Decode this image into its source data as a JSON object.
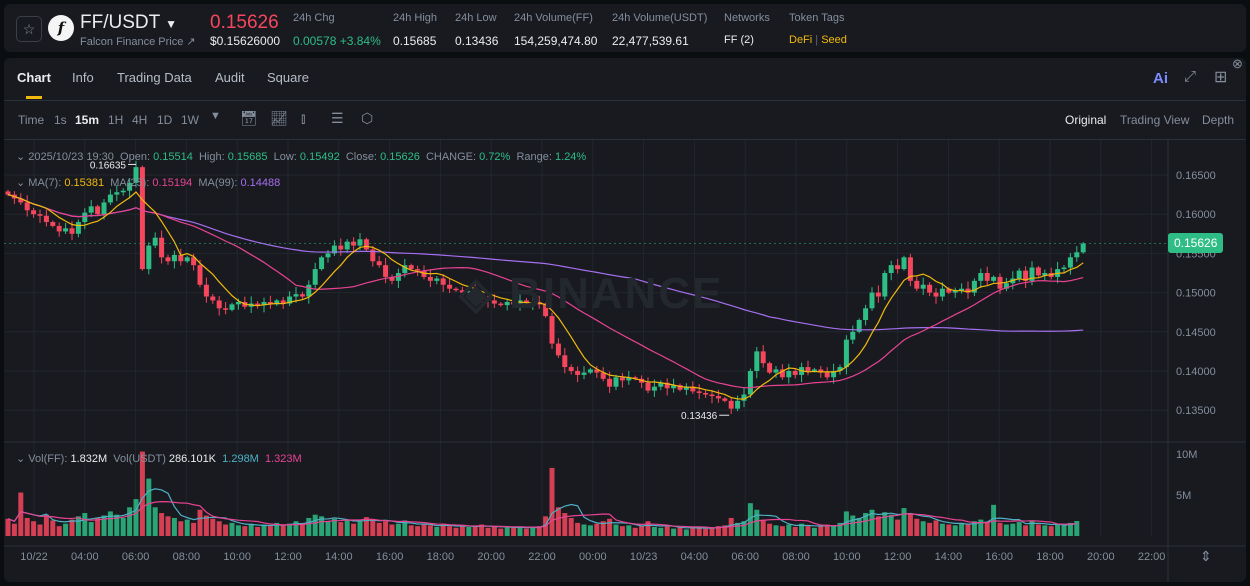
{
  "header": {
    "symbol": "FF/USDT",
    "subtitle": "Falcon Finance Price ↗",
    "price": "0.15626",
    "price_usd": "$0.15626000",
    "stats": [
      {
        "label": "24h Chg",
        "value": "0.00578 +3.84%"
      },
      {
        "label": "24h High",
        "value": "0.15685"
      },
      {
        "label": "24h Low",
        "value": "0.13436"
      },
      {
        "label": "24h Volume(FF)",
        "value": "154,259,474.80"
      },
      {
        "label": "24h Volume(USDT)",
        "value": "22,477,539.61"
      },
      {
        "label": "Networks",
        "value": "FF (2)"
      }
    ],
    "token_tags_label": "Token Tags",
    "tags": [
      "DeFi",
      "Seed"
    ],
    "tag_sep": "|"
  },
  "tabs": [
    "Chart",
    "Info",
    "Trading Data",
    "Audit",
    "Square"
  ],
  "toolbar": {
    "intervals": [
      "Time",
      "1s",
      "15m",
      "1H",
      "4H",
      "1D",
      "1W"
    ],
    "active": "15m",
    "views": [
      "Original",
      "Trading View",
      "Depth"
    ],
    "active_view": "Original",
    "ai": "Ai"
  },
  "legend": {
    "time": "2025/10/23 19:30",
    "open_l": "Open:",
    "open": "0.15514",
    "high_l": "High:",
    "high": "0.15685",
    "low_l": "Low:",
    "low": "0.15492",
    "close_l": "Close:",
    "close": "0.15626",
    "change_l": "CHANGE:",
    "change": "0.72%",
    "range_l": "Range:",
    "range": "1.24%",
    "ma7_l": "MA(7):",
    "ma7": "0.15381",
    "ma25_l": "MA(25):",
    "ma25": "0.15194",
    "ma99_l": "MA(99):",
    "ma99": "0.14488",
    "vol_l": "Vol(FF):",
    "vol": "1.832M",
    "volu_l": "Vol(USDT)",
    "volu": "286.101K",
    "vma1": "1.298M",
    "vma2": "1.323M"
  },
  "colors": {
    "up": "#2ebd85",
    "down": "#f6465d",
    "ma7": "#f0b90b",
    "ma25": "#e84393",
    "ma99": "#a66ff0",
    "vma1": "#4fb0c6",
    "vma2": "#e84393"
  },
  "chart_data": {
    "type": "candlestick",
    "interval": "15m",
    "price_ticks": [
      "0.16500",
      "0.16000",
      "0.15500",
      "0.15000",
      "0.14500",
      "0.14000",
      "0.13500"
    ],
    "ylim": [
      0.1305,
      0.1695
    ],
    "volume_ticks": [
      "10M",
      "5M"
    ],
    "x_ticks": [
      "10/22",
      "04:00",
      "06:00",
      "08:00",
      "10:00",
      "12:00",
      "14:00",
      "16:00",
      "18:00",
      "20:00",
      "22:00",
      "00:00",
      "10/23",
      "04:00",
      "06:00",
      "08:00",
      "10:00",
      "12:00",
      "14:00",
      "16:00",
      "18:00",
      "20:00",
      "22:00"
    ],
    "current_price": "0.15626",
    "max_label": "0.16635",
    "min_label": "0.13436",
    "watermark": "BINANCE",
    "closes": [
      0.1625,
      0.162,
      0.1615,
      0.1605,
      0.16,
      0.1598,
      0.159,
      0.1585,
      0.1578,
      0.1582,
      0.1575,
      0.159,
      0.1602,
      0.161,
      0.16,
      0.1615,
      0.1625,
      0.1628,
      0.163,
      0.164,
      0.166,
      0.153,
      0.156,
      0.157,
      0.1545,
      0.154,
      0.1548,
      0.154,
      0.1545,
      0.1535,
      0.151,
      0.1495,
      0.149,
      0.148,
      0.1478,
      0.1485,
      0.1488,
      0.1482,
      0.1486,
      0.1484,
      0.1488,
      0.1485,
      0.149,
      0.1486,
      0.1495,
      0.1498,
      0.1495,
      0.151,
      0.153,
      0.1545,
      0.155,
      0.156,
      0.1555,
      0.1565,
      0.156,
      0.1568,
      0.1555,
      0.154,
      0.1535,
      0.152,
      0.1515,
      0.1525,
      0.1535,
      0.153,
      0.1528,
      0.152,
      0.1515,
      0.1518,
      0.151,
      0.1505,
      0.1503,
      0.15,
      0.1502,
      0.1498,
      0.1492,
      0.149,
      0.1486,
      0.1484,
      0.1488,
      0.1485,
      0.149,
      0.1487,
      0.1488,
      0.1485,
      0.147,
      0.1435,
      0.142,
      0.1405,
      0.14,
      0.1395,
      0.1398,
      0.1402,
      0.1398,
      0.139,
      0.138,
      0.1392,
      0.1388,
      0.1392,
      0.139,
      0.1385,
      0.1375,
      0.138,
      0.1385,
      0.1378,
      0.1382,
      0.1376,
      0.138,
      0.1374,
      0.1372,
      0.137,
      0.1368,
      0.1365,
      0.1362,
      0.1352,
      0.1362,
      0.137,
      0.14,
      0.1425,
      0.141,
      0.1398,
      0.1402,
      0.1392,
      0.14,
      0.1395,
      0.1405,
      0.14,
      0.1402,
      0.1398,
      0.1392,
      0.14,
      0.1405,
      0.144,
      0.145,
      0.1465,
      0.148,
      0.15,
      0.1495,
      0.1525,
      0.1535,
      0.153,
      0.1545,
      0.1515,
      0.1505,
      0.151,
      0.15,
      0.1495,
      0.1505,
      0.15,
      0.1502,
      0.1505,
      0.15,
      0.1515,
      0.1525,
      0.1515,
      0.152,
      0.1505,
      0.1512,
      0.1518,
      0.1528,
      0.1515,
      0.1532,
      0.1522,
      0.1525,
      0.152,
      0.153,
      0.1532,
      0.1545,
      0.15514,
      0.15626
    ],
    "volumes_m": [
      2.1,
      1.5,
      5.3,
      2.2,
      1.8,
      1.4,
      2.6,
      1.9,
      1.2,
      1.5,
      2.0,
      2.4,
      2.8,
      1.7,
      2.2,
      2.5,
      3.0,
      2.6,
      2.2,
      3.5,
      4.5,
      10.3,
      7.0,
      3.5,
      2.8,
      2.4,
      2.2,
      1.8,
      2.0,
      1.6,
      3.2,
      2.5,
      2.1,
      1.8,
      1.4,
      1.6,
      1.3,
      1.2,
      1.5,
      1.1,
      1.4,
      1.2,
      1.6,
      1.3,
      1.5,
      1.8,
      1.4,
      2.2,
      2.6,
      2.4,
      1.8,
      2.1,
      1.7,
      2.0,
      1.5,
      1.9,
      2.3,
      2.0,
      1.6,
      1.8,
      1.4,
      1.5,
      1.9,
      1.3,
      1.2,
      1.4,
      1.3,
      1.1,
      1.5,
      1.2,
      1.0,
      1.3,
      1.1,
      1.2,
      1.4,
      1.0,
      1.1,
      0.9,
      1.2,
      1.0,
      1.1,
      0.9,
      1.0,
      1.2,
      2.4,
      8.3,
      3.5,
      2.8,
      2.2,
      1.6,
      1.4,
      1.3,
      1.5,
      1.8,
      2.1,
      1.4,
      1.2,
      1.3,
      1.0,
      1.2,
      1.8,
      1.1,
      1.0,
      1.2,
      0.9,
      1.1,
      0.8,
      1.0,
      1.1,
      0.9,
      1.0,
      1.2,
      1.3,
      2.2,
      1.6,
      1.8,
      4.0,
      3.2,
      2.0,
      1.5,
      1.3,
      1.2,
      1.4,
      1.1,
      1.5,
      1.2,
      1.0,
      1.3,
      1.4,
      1.2,
      1.6,
      3.0,
      2.5,
      2.2,
      2.8,
      3.2,
      2.4,
      2.9,
      2.6,
      2.0,
      3.4,
      2.8,
      2.1,
      1.8,
      1.6,
      1.9,
      1.5,
      1.4,
      1.3,
      1.6,
      1.4,
      1.8,
      2.0,
      1.7,
      3.8,
      1.6,
      1.4,
      1.5,
      1.7,
      1.3,
      1.8,
      1.4,
      1.3,
      1.2,
      1.5,
      1.3,
      1.6,
      1.83
    ]
  }
}
